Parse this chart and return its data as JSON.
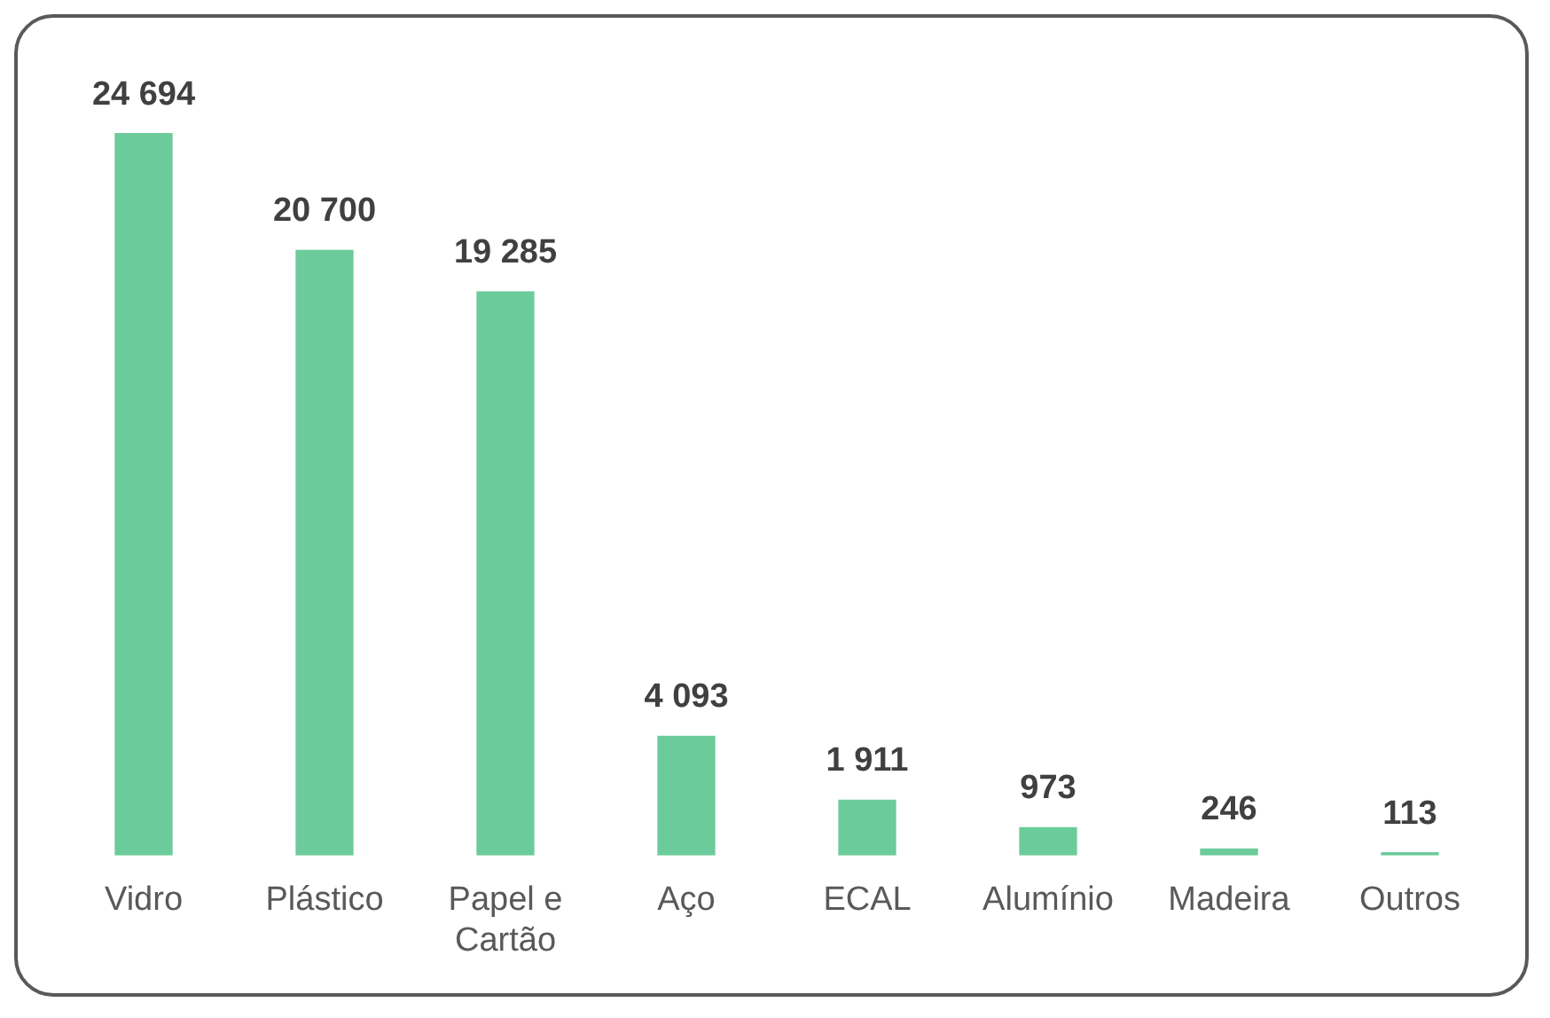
{
  "chart_data": {
    "type": "bar",
    "categories": [
      "Vidro",
      "Plástico",
      "Papel e Cartão",
      "Aço",
      "ECAL",
      "Alumínio",
      "Madeira",
      "Outros"
    ],
    "values": [
      24694,
      20700,
      19285,
      4093,
      1911,
      973,
      246,
      113
    ],
    "value_labels": [
      "24 694",
      "20 700",
      "19 285",
      "4 093",
      "1 911",
      "973",
      "246",
      "113"
    ],
    "color": "#6ccb9a",
    "grid": false,
    "legend": false,
    "tick_labels": "x"
  }
}
